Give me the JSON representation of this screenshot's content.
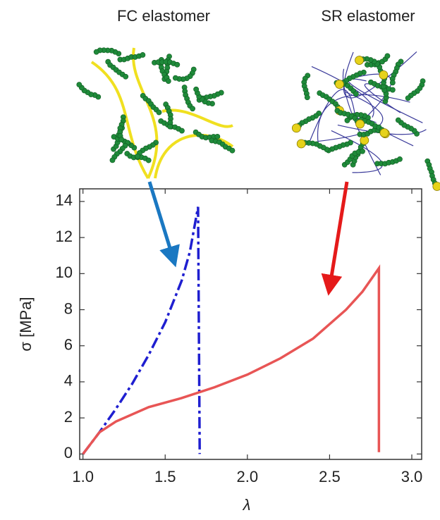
{
  "chart_data": {
    "type": "line",
    "x_label": "λ",
    "y_label": "σ [MPa]",
    "xlim": [
      0.98,
      3.06
    ],
    "ylim": [
      -0.3,
      14.7
    ],
    "xticks": [
      {
        "value": 1,
        "label": "1.0"
      },
      1.5,
      {
        "value": 2,
        "label": "2.0"
      },
      2.5,
      {
        "value": 3,
        "label": "3.0"
      }
    ],
    "yticks": [
      0,
      2,
      4,
      6,
      8,
      10,
      12,
      14
    ],
    "series": [
      {
        "name": "FC elastomer",
        "color": "#1f1fd0",
        "style": "dash-dot",
        "x": [
          1.0,
          1.1,
          1.2,
          1.3,
          1.4,
          1.5,
          1.6,
          1.65,
          1.7,
          1.71
        ],
        "values": [
          0,
          1.2,
          2.5,
          3.9,
          5.5,
          7.3,
          9.6,
          11.2,
          13.7,
          0
        ]
      },
      {
        "name": "SR elastomer",
        "color": "#e85555",
        "style": "solid",
        "x": [
          1.0,
          1.1,
          1.2,
          1.4,
          1.6,
          1.8,
          2.0,
          2.2,
          2.4,
          2.6,
          2.7,
          2.8,
          2.8
        ],
        "values": [
          0,
          1.2,
          1.8,
          2.6,
          3.1,
          3.7,
          4.4,
          5.3,
          6.4,
          8.0,
          9.0,
          10.3,
          0.1
        ]
      }
    ]
  }
}
